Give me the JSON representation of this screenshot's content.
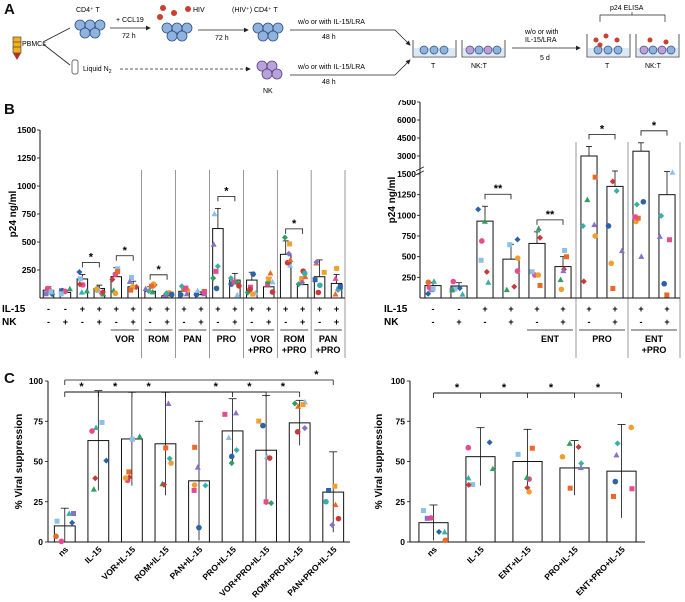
{
  "panelA": {
    "letter": "A",
    "pbmc": "PBMCs",
    "cd4": "CD4⁺ T",
    "ccl19": "+ CCL19",
    "t72a": "72 h",
    "hiv": "HIV",
    "t72b": "72 h",
    "hivcd4": "(HIV⁺) CD4⁺ T",
    "treat1": "w/o or with IL-15/LRA",
    "h48a": "48 h",
    "liquid": "Liquid N",
    "liquidSub": "2",
    "treat2": "w/o or with IL-15/LRA",
    "h48b": "48 h",
    "nk": "NK",
    "wellT": "T",
    "wellNKT": "NK:T",
    "treat3a": "w/o or with",
    "treat3b": "IL-15/LRA",
    "d5": "5 d",
    "elisa": "p24 ELISA",
    "wellT2": "T",
    "wellNKT2": "NK:T"
  },
  "panelB": {
    "letter": "B",
    "yLabel": "p24 ng/ml",
    "rowIL15": "IL-15",
    "rowNK": "NK"
  },
  "panelC": {
    "letter": "C",
    "yLabel": "% Viral suppression"
  },
  "chart_data": [
    {
      "id": "B-left",
      "type": "bar",
      "ylabel": "p24 ng/ml",
      "ylim": [
        0,
        1500
      ],
      "yticks": [
        "250",
        "500",
        "750",
        "1000",
        "1250",
        "1500"
      ],
      "il15": [
        "-",
        "-",
        "+",
        "+",
        "+",
        "+",
        "+",
        "+",
        "+",
        "+",
        "+",
        "+",
        "+",
        "+",
        "+",
        "+",
        "+",
        "+"
      ],
      "nk": [
        "-",
        "+",
        "-",
        "+",
        "-",
        "+",
        "-",
        "+",
        "-",
        "+",
        "-",
        "+",
        "-",
        "+",
        "-",
        "+",
        "-",
        "+"
      ],
      "groups": [
        "VOR",
        "ROM",
        "PAN",
        "PRO",
        "VOR +PRO",
        "ROM +PRO",
        "PAN +PRO"
      ],
      "values": [
        70,
        50,
        170,
        85,
        190,
        100,
        60,
        20,
        60,
        30,
        620,
        160,
        160,
        100,
        390,
        120,
        190,
        130
      ],
      "errors": [
        30,
        20,
        40,
        30,
        80,
        50,
        40,
        20,
        30,
        25,
        180,
        60,
        70,
        80,
        120,
        70,
        150,
        80
      ],
      "significance": [
        {
          "bars": [
            2,
            3
          ],
          "label": "*"
        },
        {
          "bars": [
            4,
            5
          ],
          "label": "*"
        },
        {
          "bars": [
            6,
            7
          ],
          "label": "*"
        },
        {
          "bars": [
            10,
            11
          ],
          "label": "*"
        },
        {
          "bars": [
            14,
            15
          ],
          "label": "*"
        }
      ]
    },
    {
      "id": "B-right",
      "type": "bar",
      "ylabel": "p24 ng/ml",
      "ylim": [
        0,
        7500
      ],
      "yticks": [
        "250",
        "500",
        "750",
        "1000",
        "1250",
        "1500",
        "3000",
        "4500",
        "6000",
        "7500"
      ],
      "il15": [
        "-",
        "-",
        "+",
        "+",
        "+",
        "+",
        "+",
        "+",
        "+",
        "+"
      ],
      "nk": [
        "-",
        "+",
        "-",
        "+",
        "-",
        "+",
        "-",
        "+",
        "-",
        "+"
      ],
      "groups": [
        "ENT",
        "PRO",
        "ENT +PRO"
      ],
      "values": [
        150,
        145,
        930,
        470,
        660,
        380,
        3000,
        1350,
        3400,
        1250
      ],
      "errors": [
        40,
        40,
        180,
        180,
        140,
        120,
        800,
        400,
        700,
        450
      ],
      "significance": [
        {
          "bars": [
            2,
            3
          ],
          "label": "**"
        },
        {
          "bars": [
            4,
            5
          ],
          "label": "**"
        },
        {
          "bars": [
            6,
            7
          ],
          "label": "*"
        },
        {
          "bars": [
            8,
            9
          ],
          "label": "*"
        }
      ]
    },
    {
      "id": "C-left",
      "type": "bar",
      "ylabel": "% Viral suppression",
      "ylim": [
        0,
        100
      ],
      "yticks": [
        "0",
        "25",
        "50",
        "75",
        "100"
      ],
      "categories": [
        "ns",
        "IL-15",
        "VOR+IL-15",
        "ROM+IL-15",
        "PAN+IL-15",
        "PRO+IL-15",
        "VOR+PRO+IL-15",
        "ROM+PRO+IL-15",
        "PAN+PRO+IL-15"
      ],
      "values": [
        10,
        63,
        64,
        61,
        38,
        69,
        57,
        74,
        31
      ],
      "errors": [
        11,
        31,
        29,
        32,
        37,
        20,
        34,
        14,
        25
      ],
      "significance": [
        {
          "bars": [
            0,
            1
          ],
          "label": "*"
        },
        {
          "bars": [
            0,
            2
          ],
          "label": "*"
        },
        {
          "bars": [
            0,
            3
          ],
          "label": "*"
        },
        {
          "bars": [
            0,
            5
          ],
          "label": "*"
        },
        {
          "bars": [
            0,
            6
          ],
          "label": "*"
        },
        {
          "bars": [
            0,
            7
          ],
          "label": "*"
        },
        {
          "bars": [
            0,
            8
          ],
          "label": "*"
        }
      ]
    },
    {
      "id": "C-right",
      "type": "bar",
      "ylabel": "% Viral suppression",
      "ylim": [
        0,
        100
      ],
      "yticks": [
        "0",
        "25",
        "50",
        "75",
        "100"
      ],
      "categories": [
        "ns",
        "IL-15",
        "ENT+IL-15",
        "PRO+IL-15",
        "ENT+PRO+IL-15"
      ],
      "values": [
        12,
        53,
        50,
        46,
        44
      ],
      "errors": [
        11,
        18,
        20,
        17,
        29
      ],
      "significance": [
        {
          "bars": [
            0,
            1
          ],
          "label": "*"
        },
        {
          "bars": [
            0,
            2
          ],
          "label": "*"
        },
        {
          "bars": [
            0,
            3
          ],
          "label": "*"
        },
        {
          "bars": [
            0,
            4
          ],
          "label": "*"
        }
      ]
    }
  ],
  "colors": {
    "dotPalette": [
      "#e8692a",
      "#8a6fc4",
      "#3aaea8",
      "#2b62a8",
      "#e94a8e",
      "#8cc0e6",
      "#2f9e5f",
      "#c73a3a",
      "#f0a030"
    ]
  }
}
